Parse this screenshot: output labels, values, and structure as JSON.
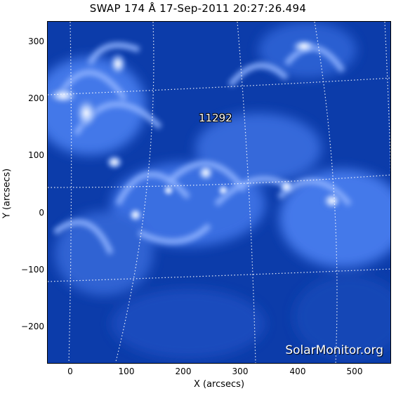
{
  "title": "SWAP 174 Å 17-Sep-2011 20:27:26.494",
  "watermark": "SolarMonitor.org",
  "region_label": "11292",
  "x_axis_title": "X (arcsecs)",
  "y_axis_title": "Y (arcsecs)",
  "x_ticks": [
    "0",
    "100",
    "200",
    "300",
    "400",
    "500"
  ],
  "y_ticks": [
    "300",
    "200",
    "100",
    "0",
    "−100",
    "−200"
  ],
  "colors": {
    "background": "#0a3aa8",
    "bright": "#dbe8ff",
    "grid": "#ffffff"
  }
}
